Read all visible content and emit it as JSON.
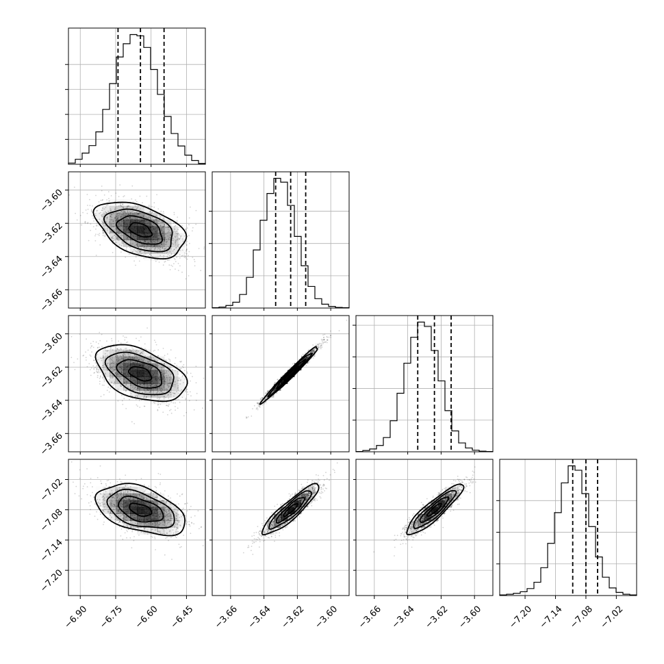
{
  "chart_data": {
    "type": "corner",
    "colors": {
      "ink": "#000000",
      "grid": "#b0b0b0",
      "scatter": "#000000",
      "density_max": "#000000"
    },
    "grid": true,
    "parameters": [
      {
        "index": 0,
        "range": [
          -6.95,
          -6.37
        ],
        "ticks": [
          -6.9,
          -6.75,
          -6.6,
          -6.45
        ],
        "tick_labels": [
          "−6.90",
          "−6.75",
          "−6.60",
          "−6.45"
        ],
        "mean": -6.645,
        "sd": 0.095,
        "quantiles": [
          -6.74,
          -6.645,
          -6.545
        ]
      },
      {
        "index": 1,
        "range": [
          -3.671,
          -3.589
        ],
        "ticks": [
          -3.66,
          -3.64,
          -3.62,
          -3.6
        ],
        "tick_labels": [
          "−3.66",
          "−3.64",
          "−3.62",
          "−3.60"
        ],
        "mean": -3.624,
        "sd": 0.0085,
        "quantiles": [
          -3.633,
          -3.624,
          -3.615
        ]
      },
      {
        "index": 2,
        "range": [
          -3.671,
          -3.589
        ],
        "ticks": [
          -3.66,
          -3.64,
          -3.62,
          -3.6
        ],
        "tick_labels": [
          "−3.66",
          "−3.64",
          "−3.62",
          "−3.60"
        ],
        "mean": -3.624,
        "sd": 0.0085,
        "quantiles": [
          -3.634,
          -3.624,
          -3.614
        ]
      },
      {
        "index": 3,
        "range": [
          -7.25,
          -6.98
        ],
        "ticks": [
          -7.2,
          -7.14,
          -7.08,
          -7.02
        ],
        "tick_labels": [
          "−7.20",
          "−7.14",
          "−7.08",
          "−7.02"
        ],
        "mean": -7.08,
        "sd": 0.025,
        "quantiles": [
          -7.106,
          -7.08,
          -7.057
        ]
      }
    ],
    "histograms": [
      {
        "param": 0,
        "bins": 20,
        "counts": [
          3,
          12,
          27,
          45,
          78,
          132,
          194,
          258,
          290,
          312,
          309,
          281,
          228,
          168,
          115,
          74,
          44,
          22,
          9,
          2
        ],
        "yticks": [
          60,
          120,
          180,
          240
        ]
      },
      {
        "param": 1,
        "bins": 20,
        "counts": [
          1,
          3,
          8,
          18,
          42,
          95,
          180,
          272,
          355,
          402,
          390,
          318,
          222,
          131,
          67,
          29,
          12,
          5,
          2,
          1
        ],
        "yticks": [
          100,
          200,
          300
        ]
      },
      {
        "param": 2,
        "bins": 20,
        "counts": [
          1,
          4,
          9,
          20,
          45,
          98,
          185,
          280,
          362,
          410,
          396,
          320,
          224,
          130,
          66,
          28,
          12,
          5,
          2,
          1
        ],
        "yticks": [
          100,
          200,
          300,
          400
        ]
      },
      {
        "param": 3,
        "bins": 20,
        "counts": [
          2,
          4,
          7,
          12,
          22,
          42,
          88,
          165,
          262,
          356,
          410,
          396,
          322,
          218,
          122,
          58,
          24,
          10,
          4,
          2
        ],
        "yticks": [
          100,
          200,
          300
        ]
      }
    ],
    "pairs": [
      {
        "x": 0,
        "y": 1,
        "correlation": -0.45
      },
      {
        "x": 0,
        "y": 2,
        "correlation": -0.45
      },
      {
        "x": 1,
        "y": 2,
        "correlation": 0.985
      },
      {
        "x": 0,
        "y": 3,
        "correlation": -0.45
      },
      {
        "x": 1,
        "y": 3,
        "correlation": 0.9
      },
      {
        "x": 2,
        "y": 3,
        "correlation": 0.9
      }
    ]
  }
}
